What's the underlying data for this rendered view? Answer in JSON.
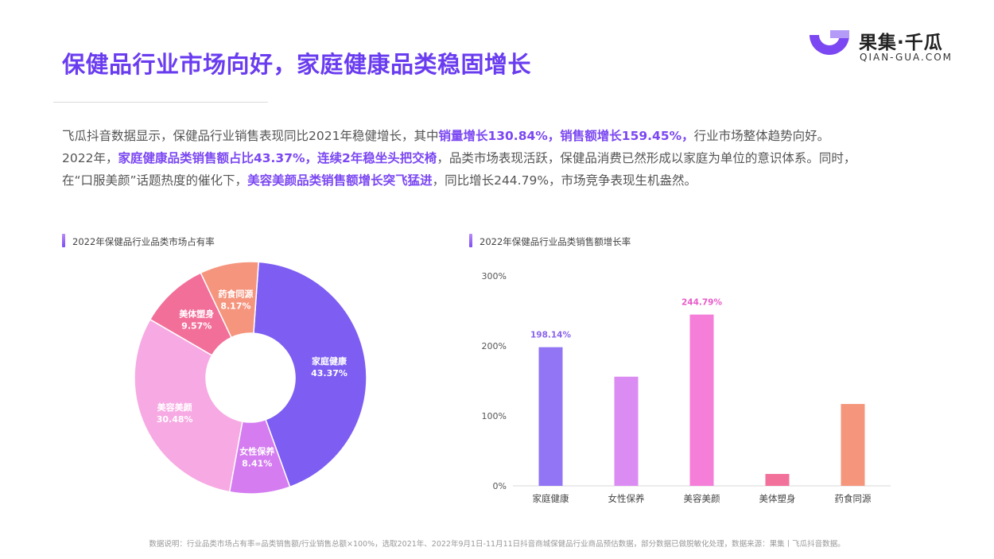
{
  "header": {
    "title": "保健品行业市场向好，家庭健康品类稳固增长"
  },
  "logo": {
    "name": "果集·千瓜",
    "url": "QIAN-GUA.COM"
  },
  "intro": {
    "p1": [
      {
        "t": "飞瓜抖音数据显示，保健品行业销售表现同比2021年稳健增长，其中",
        "h": false
      },
      {
        "t": "销量增长130.84%，销售额增长159.45%，",
        "h": true
      },
      {
        "t": "行业市场整体趋势向好。",
        "h": false
      }
    ],
    "p2": [
      {
        "t": "2022年，",
        "h": false
      },
      {
        "t": "家庭健康品类销售额占比43.37%，连续2年稳坐头把交椅",
        "h": true
      },
      {
        "t": "，品类市场表现活跃，保健品消费已然形成以家庭为单位的意识体系。同时，",
        "h": false
      }
    ],
    "p3": [
      {
        "t": "在“口服美颜”话题热度的催化下，",
        "h": false
      },
      {
        "t": "美容美颜品类销售额增长突飞猛进",
        "h": true
      },
      {
        "t": "，同比增长244.79%，市场竞争表现生机盎然。",
        "h": false
      }
    ]
  },
  "colors": {
    "accent": "#6a3cf0",
    "highlight": "#7b47f2"
  },
  "chart_data": [
    {
      "type": "pie",
      "title": "2022年保健品行业品类市场占有率",
      "categories": [
        "家庭健康",
        "女性保养",
        "美容美颜",
        "美体塑身",
        "药食同源"
      ],
      "values": [
        43.37,
        8.41,
        30.48,
        9.57,
        8.17
      ],
      "labels": [
        "43.37%",
        "8.41%",
        "30.48%",
        "9.57%",
        "8.17%"
      ],
      "colors": [
        "#7d5df2",
        "#d47cf0",
        "#f7a9e3",
        "#f26f9a",
        "#f5957e"
      ]
    },
    {
      "type": "bar",
      "title": "2022年保健品行业品类销售额增长率",
      "categories": [
        "家庭健康",
        "女性保养",
        "美容美颜",
        "美体塑身",
        "药食同源"
      ],
      "values": [
        198.14,
        156,
        244.79,
        17,
        117
      ],
      "data_labels": [
        "198.14%",
        "",
        "244.79%",
        "",
        ""
      ],
      "label_colors": [
        "#8a63f0",
        "",
        "#e85bc9",
        "",
        ""
      ],
      "colors": [
        "#9175f5",
        "#db8cf2",
        "#f57ed9",
        "#f2719b",
        "#f5967c"
      ],
      "ylim": [
        0,
        300
      ],
      "yticks": [
        "0%",
        "100%",
        "200%",
        "300%"
      ]
    }
  ],
  "footer": {
    "note": "数据说明：行业品类市场占有率=品类销售额/行业销售总额×100%，选取2021年、2022年9月1日-11月11日抖音商城保健品行业商品预估数据，部分数据已做脱敏化处理，数据来源：果集丨飞瓜抖音数据。"
  }
}
